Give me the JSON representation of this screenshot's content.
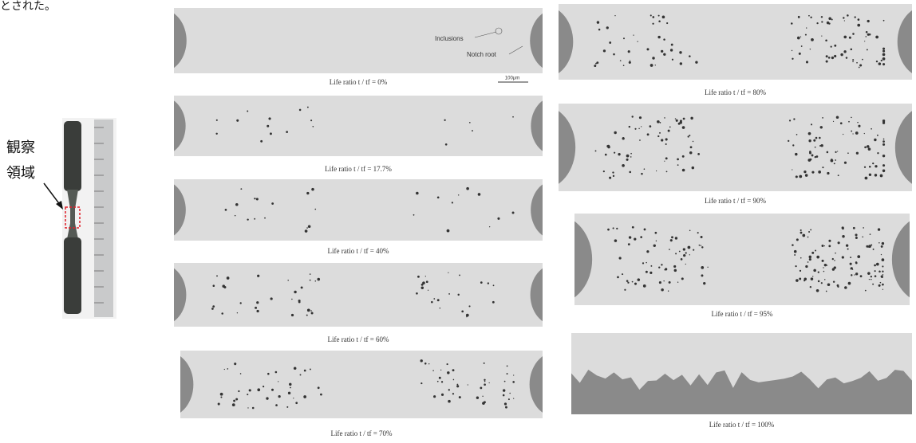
{
  "top_text": "とされた。",
  "specimen": {
    "label_lines": [
      "観察",
      "領域"
    ]
  },
  "annotations": {
    "inclusions": "Inclusions",
    "notch_root": "Notch root",
    "scale_bar": "100μm"
  },
  "panels": [
    {
      "caption": "Life ratio t / tf = 0%"
    },
    {
      "caption": "Life ratio t / tf = 17.7%"
    },
    {
      "caption": "Life ratio t / tf = 40%"
    },
    {
      "caption": "Life ratio t / tf = 60%"
    },
    {
      "caption": "Life ratio t / tf = 70%"
    },
    {
      "caption": "Life ratio t / tf = 80%"
    },
    {
      "caption": "Life ratio t / tf = 90%"
    },
    {
      "caption": "Life ratio t / tf = 95%"
    },
    {
      "caption": "Life ratio t / tf = 100%"
    }
  ]
}
